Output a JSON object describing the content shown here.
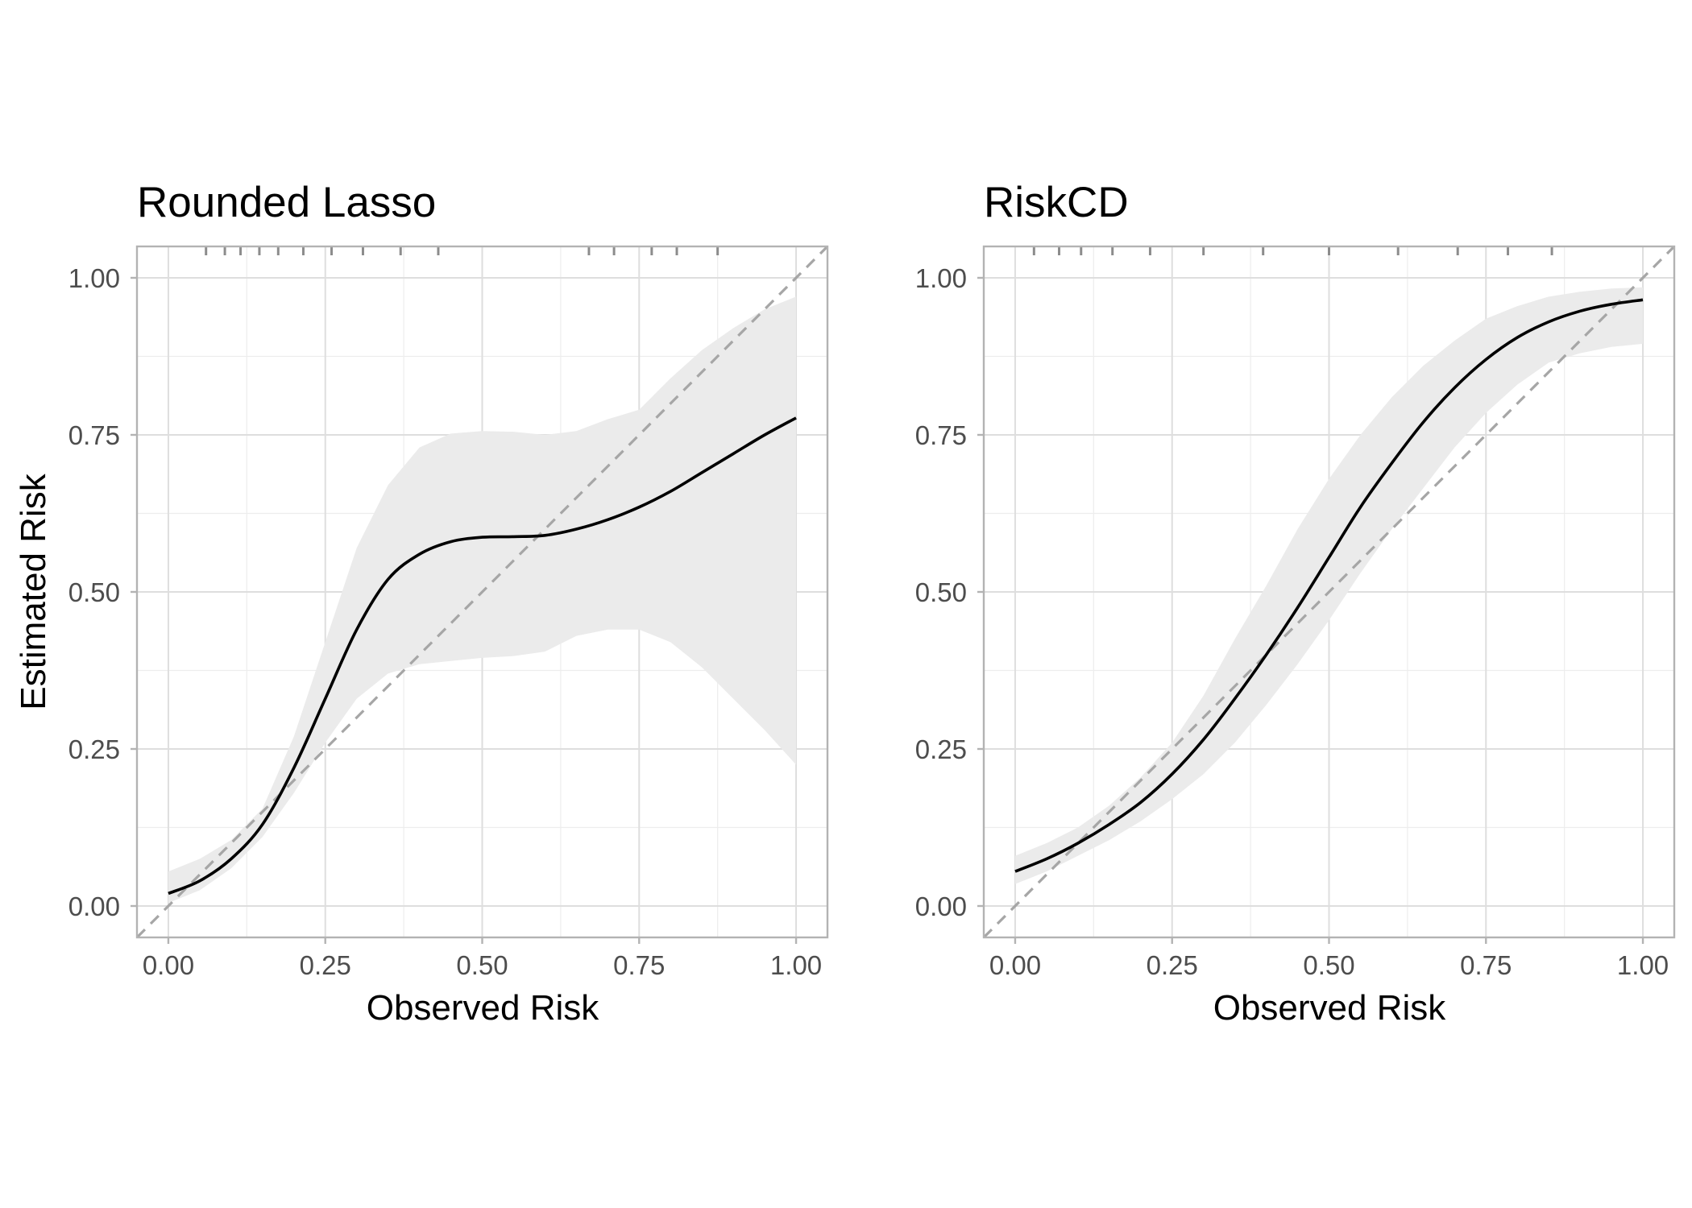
{
  "chart_data": [
    {
      "type": "line",
      "title": "Rounded Lasso",
      "xlabel": "Observed Risk",
      "ylabel": "Estimated Risk",
      "xlim": [
        -0.05,
        1.05
      ],
      "ylim": [
        -0.05,
        1.05
      ],
      "x_ticks": [
        "0.00",
        "0.25",
        "0.50",
        "0.75",
        "1.00"
      ],
      "y_ticks": [
        "0.00",
        "0.25",
        "0.50",
        "0.75",
        "1.00"
      ],
      "grid": true,
      "reference_line": {
        "style": "dashed",
        "color": "#a6a6a6",
        "from": [
          -0.05,
          -0.05
        ],
        "to": [
          1.05,
          1.05
        ]
      },
      "rug_x": [
        0.06,
        0.09,
        0.115,
        0.145,
        0.175,
        0.215,
        0.26,
        0.31,
        0.37,
        0.43,
        0.67,
        0.71,
        0.77,
        0.81,
        0.875
      ],
      "series": [
        {
          "x": [
            0.0,
            0.05,
            0.1,
            0.15,
            0.2,
            0.25,
            0.3,
            0.35,
            0.4,
            0.45,
            0.5,
            0.55,
            0.6,
            0.65,
            0.7,
            0.75,
            0.8,
            0.85,
            0.9,
            0.95,
            1.0
          ],
          "y": [
            0.02,
            0.04,
            0.075,
            0.13,
            0.22,
            0.33,
            0.44,
            0.52,
            0.56,
            0.58,
            0.587,
            0.588,
            0.59,
            0.6,
            0.615,
            0.635,
            0.66,
            0.69,
            0.72,
            0.75,
            0.777
          ],
          "ci_lower": [
            0.005,
            0.025,
            0.06,
            0.11,
            0.18,
            0.26,
            0.33,
            0.37,
            0.385,
            0.39,
            0.395,
            0.398,
            0.405,
            0.43,
            0.44,
            0.44,
            0.42,
            0.38,
            0.33,
            0.28,
            0.225
          ],
          "ci_upper": [
            0.055,
            0.075,
            0.105,
            0.155,
            0.27,
            0.42,
            0.57,
            0.67,
            0.73,
            0.752,
            0.756,
            0.755,
            0.75,
            0.756,
            0.775,
            0.79,
            0.84,
            0.885,
            0.92,
            0.95,
            0.97
          ],
          "color": "#000000",
          "band_color": "#ebebeb"
        }
      ]
    },
    {
      "type": "line",
      "title": "RiskCD",
      "xlabel": "Observed Risk",
      "ylabel": "",
      "xlim": [
        -0.05,
        1.05
      ],
      "ylim": [
        -0.05,
        1.05
      ],
      "x_ticks": [
        "0.00",
        "0.25",
        "0.50",
        "0.75",
        "1.00"
      ],
      "y_ticks": [
        "0.00",
        "0.25",
        "0.50",
        "0.75",
        "1.00"
      ],
      "grid": true,
      "reference_line": {
        "style": "dashed",
        "color": "#a6a6a6",
        "from": [
          -0.05,
          -0.05
        ],
        "to": [
          1.05,
          1.05
        ]
      },
      "rug_x": [
        0.03,
        0.07,
        0.105,
        0.155,
        0.215,
        0.3,
        0.395,
        0.5,
        0.61,
        0.705,
        0.785,
        0.855
      ],
      "series": [
        {
          "x": [
            0.0,
            0.05,
            0.1,
            0.15,
            0.2,
            0.25,
            0.3,
            0.35,
            0.4,
            0.45,
            0.5,
            0.55,
            0.6,
            0.65,
            0.7,
            0.75,
            0.8,
            0.85,
            0.9,
            0.95,
            1.0
          ],
          "y": [
            0.055,
            0.075,
            0.1,
            0.13,
            0.165,
            0.21,
            0.265,
            0.33,
            0.4,
            0.475,
            0.555,
            0.635,
            0.705,
            0.77,
            0.825,
            0.87,
            0.905,
            0.93,
            0.947,
            0.958,
            0.965
          ],
          "ci_lower": [
            0.035,
            0.055,
            0.08,
            0.105,
            0.135,
            0.17,
            0.21,
            0.26,
            0.32,
            0.385,
            0.455,
            0.53,
            0.6,
            0.665,
            0.73,
            0.785,
            0.83,
            0.865,
            0.88,
            0.89,
            0.895
          ],
          "ci_upper": [
            0.08,
            0.1,
            0.125,
            0.16,
            0.205,
            0.26,
            0.335,
            0.425,
            0.51,
            0.6,
            0.68,
            0.75,
            0.81,
            0.86,
            0.9,
            0.935,
            0.955,
            0.97,
            0.978,
            0.983,
            0.985
          ],
          "color": "#000000",
          "band_color": "#ebebeb"
        }
      ]
    }
  ]
}
